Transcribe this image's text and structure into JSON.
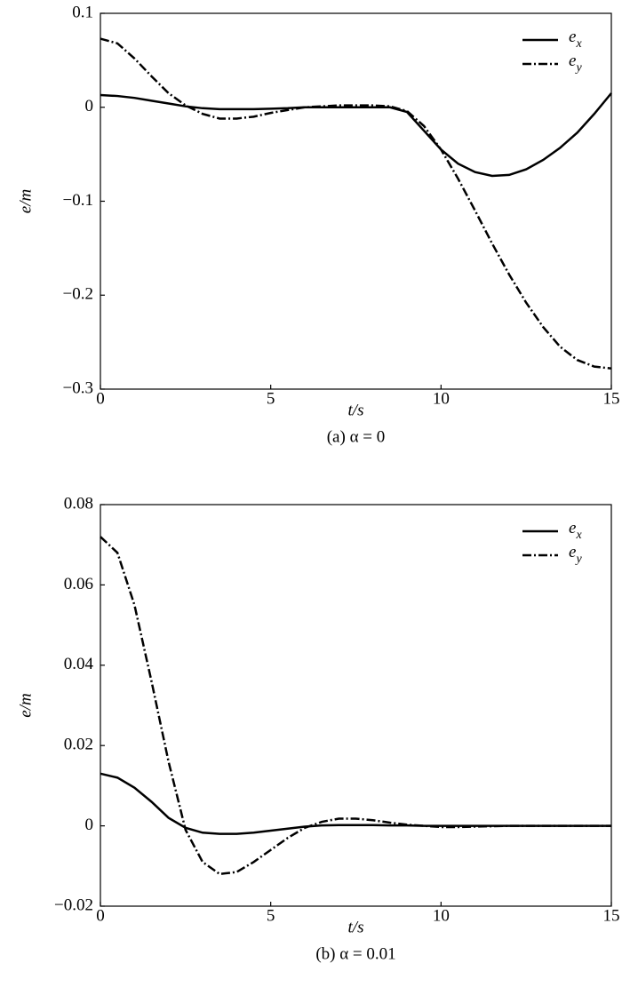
{
  "chart_data": [
    {
      "type": "line",
      "caption": "(a)  α = 0",
      "xlabel": "t/s",
      "ylabel": "e/m",
      "legend": "upper right",
      "x": [
        0,
        0.5,
        1,
        1.5,
        2,
        2.5,
        3,
        3.5,
        4,
        4.5,
        5,
        5.5,
        6,
        6.5,
        7,
        7.5,
        8,
        8.5,
        9,
        9.5,
        10,
        10.5,
        11,
        11.5,
        12,
        12.5,
        13,
        13.5,
        14,
        14.5,
        15
      ],
      "xlim": [
        0,
        15
      ],
      "xticks": [
        0,
        5,
        10,
        15
      ],
      "ylim": [
        -0.3,
        0.1
      ],
      "yticks": [
        {
          "value": -0.3,
          "label": "−0.3"
        },
        {
          "value": -0.2,
          "label": "−0.2"
        },
        {
          "value": -0.1,
          "label": "−0.1"
        },
        0,
        0.1
      ],
      "series": [
        {
          "name": "e",
          "subscript": "x",
          "color": "#000000",
          "dash": "solid",
          "values": [
            0.013,
            0.012,
            0.01,
            0.007,
            0.004,
            0.001,
            -0.001,
            -0.002,
            -0.002,
            -0.002,
            -0.0015,
            -0.001,
            0,
            0,
            0,
            0,
            0,
            0,
            -0.005,
            -0.025,
            -0.045,
            -0.06,
            -0.069,
            -0.073,
            -0.072,
            -0.066,
            -0.056,
            -0.043,
            -0.027,
            -0.007,
            0.015
          ]
        },
        {
          "name": "e",
          "subscript": "y",
          "color": "#000000",
          "dash": "dashdot",
          "values": [
            0.073,
            0.068,
            0.052,
            0.033,
            0.015,
            0.002,
            -0.007,
            -0.012,
            -0.012,
            -0.01,
            -0.006,
            -0.003,
            0,
            0.001,
            0.002,
            0.002,
            0.002,
            0.001,
            -0.004,
            -0.02,
            -0.045,
            -0.076,
            -0.11,
            -0.145,
            -0.178,
            -0.208,
            -0.234,
            -0.255,
            -0.269,
            -0.276,
            -0.278
          ]
        }
      ]
    },
    {
      "type": "line",
      "caption": "(b)  α = 0.01",
      "xlabel": "t/s",
      "ylabel": "e/m",
      "legend": "upper right",
      "x": [
        0,
        0.5,
        1,
        1.5,
        2,
        2.5,
        3,
        3.5,
        4,
        4.5,
        5,
        5.5,
        6,
        6.5,
        7,
        7.5,
        8,
        8.5,
        9,
        9.5,
        10,
        10.5,
        11,
        11.5,
        12,
        12.5,
        13,
        13.5,
        14,
        14.5,
        15
      ],
      "xlim": [
        0,
        15
      ],
      "xticks": [
        0,
        5,
        10,
        15
      ],
      "ylim": [
        -0.02,
        0.08
      ],
      "yticks": [
        {
          "value": -0.02,
          "label": "−0.02"
        },
        0,
        0.02,
        0.04,
        0.06,
        0.08
      ],
      "series": [
        {
          "name": "e",
          "subscript": "x",
          "color": "#000000",
          "dash": "solid",
          "values": [
            0.013,
            0.012,
            0.0095,
            0.006,
            0.002,
            -0.0005,
            -0.0017,
            -0.002,
            -0.002,
            -0.0017,
            -0.0012,
            -0.0007,
            -0.0002,
            0.0001,
            0.0002,
            0.0002,
            0.0002,
            0.0001,
            0.0001,
            0,
            0,
            0,
            0,
            0,
            0,
            0,
            0,
            0,
            0,
            0,
            0
          ]
        },
        {
          "name": "e",
          "subscript": "y",
          "color": "#000000",
          "dash": "dashdot",
          "values": [
            0.072,
            0.068,
            0.055,
            0.036,
            0.016,
            -0.001,
            -0.009,
            -0.012,
            -0.0115,
            -0.009,
            -0.006,
            -0.003,
            -0.0005,
            0.001,
            0.0018,
            0.0018,
            0.0014,
            0.0008,
            0.0003,
            0,
            -0.0003,
            -0.0003,
            -0.0002,
            -0.0001,
            0,
            0,
            0,
            0,
            0,
            0,
            0
          ]
        }
      ]
    }
  ]
}
